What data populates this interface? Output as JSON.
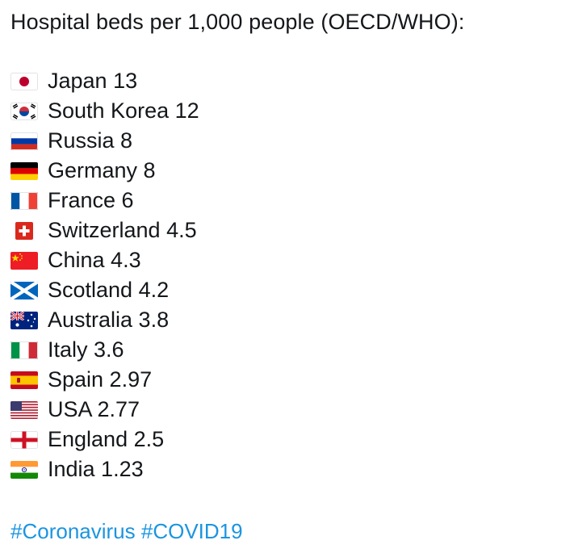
{
  "post": {
    "title": "Hospital beds per 1,000 people (OECD/WHO):",
    "items": [
      {
        "flag": "japan-flag-icon",
        "text": "Japan 13"
      },
      {
        "flag": "south-korea-flag-icon",
        "text": "South Korea 12"
      },
      {
        "flag": "russia-flag-icon",
        "text": "Russia 8"
      },
      {
        "flag": "germany-flag-icon",
        "text": "Germany 8"
      },
      {
        "flag": "france-flag-icon",
        "text": "France 6"
      },
      {
        "flag": "switzerland-flag-icon",
        "text": "Switzerland 4.5"
      },
      {
        "flag": "china-flag-icon",
        "text": "China 4.3"
      },
      {
        "flag": "scotland-flag-icon",
        "text": "Scotland 4.2"
      },
      {
        "flag": "australia-flag-icon",
        "text": "Australia 3.8"
      },
      {
        "flag": "italy-flag-icon",
        "text": "Italy 3.6"
      },
      {
        "flag": "spain-flag-icon",
        "text": "Spain 2.97"
      },
      {
        "flag": "usa-flag-icon",
        "text": "USA 2.77"
      },
      {
        "flag": "england-flag-icon",
        "text": "England 2.5"
      },
      {
        "flag": "india-flag-icon",
        "text": "India 1.23"
      }
    ],
    "hashtags": [
      "#Coronavirus",
      "#COVID19"
    ]
  },
  "colors": {
    "text": "#14171a",
    "hashtag": "#1b95e0"
  }
}
